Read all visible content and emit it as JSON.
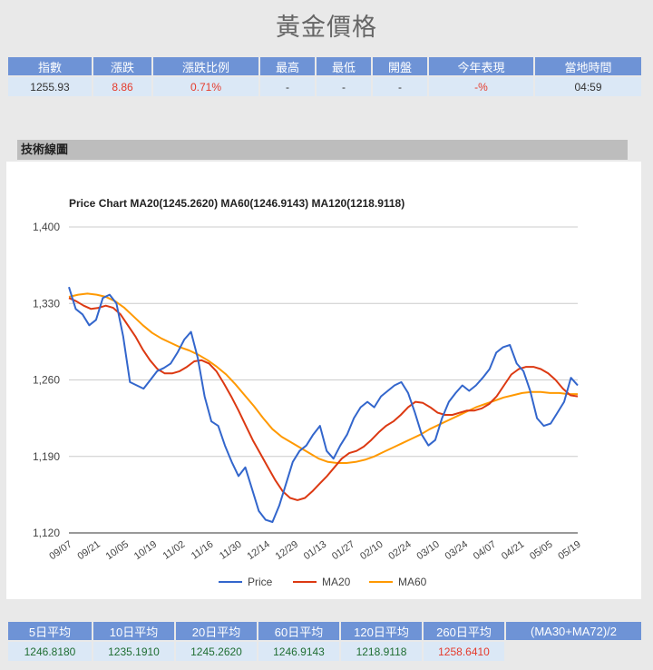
{
  "page": {
    "title": "黃金價格"
  },
  "quote_table": {
    "headers": [
      "指數",
      "漲跌",
      "漲跌比例",
      "最高",
      "最低",
      "開盤",
      "今年表現",
      "當地時間"
    ],
    "values": [
      "1255.93",
      "8.86",
      "0.71%",
      "-",
      "-",
      "-",
      "-%",
      "04:59"
    ]
  },
  "section": {
    "title": "技術線圖"
  },
  "chart_data": {
    "type": "line",
    "title": "Price Chart MA20(1245.2620) MA60(1246.9143) MA120(1218.9118)",
    "x_ticks": [
      "09/07",
      "09/21",
      "10/05",
      "10/19",
      "11/02",
      "11/16",
      "11/30",
      "12/14",
      "12/29",
      "01/13",
      "01/27",
      "02/10",
      "02/24",
      "03/10",
      "03/24",
      "04/07",
      "04/21",
      "05/05",
      "05/19"
    ],
    "y_ticks": [
      "1,400",
      "1,330",
      "1,260",
      "1,190",
      "1,120"
    ],
    "ylim": [
      1120,
      1400
    ],
    "grid": true,
    "legend_position": "bottom",
    "series": [
      {
        "name": "Price",
        "color": "#3366cc",
        "values": [
          1345,
          1325,
          1320,
          1310,
          1315,
          1335,
          1338,
          1330,
          1300,
          1258,
          1255,
          1252,
          1260,
          1268,
          1271,
          1275,
          1285,
          1297,
          1304,
          1280,
          1245,
          1222,
          1218,
          1200,
          1185,
          1172,
          1180,
          1160,
          1140,
          1132,
          1130,
          1145,
          1165,
          1185,
          1195,
          1200,
          1210,
          1218,
          1195,
          1188,
          1200,
          1210,
          1225,
          1235,
          1240,
          1235,
          1245,
          1250,
          1255,
          1258,
          1248,
          1230,
          1210,
          1200,
          1205,
          1225,
          1240,
          1248,
          1255,
          1250,
          1255,
          1262,
          1270,
          1285,
          1290,
          1292,
          1275,
          1268,
          1250,
          1225,
          1218,
          1220,
          1230,
          1240,
          1262,
          1255
        ]
      },
      {
        "name": "MA20",
        "color": "#dc3912",
        "values": [
          1335,
          1332,
          1328,
          1325,
          1326,
          1328,
          1326,
          1320,
          1310,
          1300,
          1288,
          1278,
          1270,
          1266,
          1266,
          1268,
          1272,
          1277,
          1278,
          1275,
          1268,
          1257,
          1245,
          1232,
          1218,
          1204,
          1192,
          1180,
          1168,
          1158,
          1152,
          1150,
          1152,
          1158,
          1165,
          1172,
          1180,
          1188,
          1193,
          1195,
          1199,
          1205,
          1212,
          1218,
          1222,
          1228,
          1235,
          1240,
          1239,
          1235,
          1230,
          1228,
          1228,
          1230,
          1232,
          1232,
          1234,
          1238,
          1245,
          1255,
          1265,
          1270,
          1272,
          1272,
          1270,
          1266,
          1260,
          1252,
          1246,
          1245
        ]
      },
      {
        "name": "MA60",
        "color": "#ff9900",
        "values": [
          1336,
          1338,
          1339,
          1338,
          1336,
          1332,
          1326,
          1318,
          1310,
          1303,
          1298,
          1294,
          1290,
          1287,
          1283,
          1278,
          1272,
          1265,
          1256,
          1246,
          1236,
          1225,
          1215,
          1208,
          1203,
          1198,
          1193,
          1188,
          1185,
          1184,
          1184,
          1185,
          1187,
          1190,
          1194,
          1198,
          1202,
          1206,
          1210,
          1215,
          1219,
          1223,
          1227,
          1231,
          1235,
          1238,
          1241,
          1244,
          1246,
          1248,
          1249,
          1249,
          1248,
          1248,
          1247,
          1247
        ]
      }
    ]
  },
  "averages": {
    "headers": [
      "5日平均",
      "10日平均",
      "20日平均",
      "60日平均",
      "120日平均",
      "260日平均",
      "(MA30+MA72)/2"
    ],
    "values": [
      "1246.8180",
      "1235.1910",
      "1245.2620",
      "1246.9143",
      "1218.9118",
      "1258.6410",
      ""
    ]
  }
}
